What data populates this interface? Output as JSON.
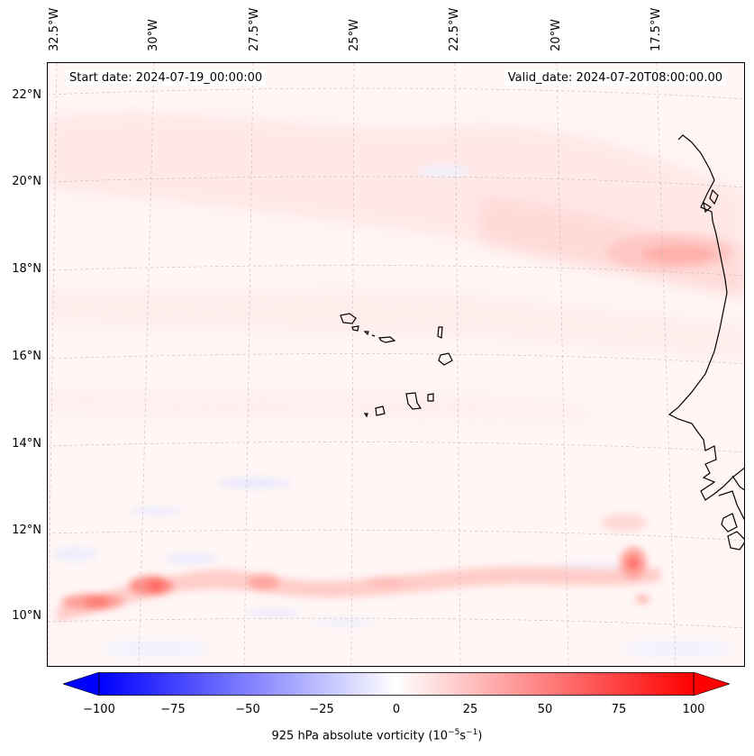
{
  "map": {
    "start_label": "Start date: 2024-07-19_00:00:00",
    "valid_label": "Valid_date: 2024-07-20T08:00:00.00",
    "lon_labels": [
      "32.5°W",
      "30°W",
      "27.5°W",
      "25°W",
      "22.5°W",
      "20°W",
      "17.5°W"
    ],
    "lat_labels": [
      "22°N",
      "20°N",
      "18°N",
      "16°N",
      "14°N",
      "12°N",
      "10°N"
    ],
    "features": [
      "vorticity-band-south",
      "vorticity-maximum-west",
      "cape-verde-islands",
      "west-africa-coast"
    ]
  },
  "colorbar": {
    "ticks": [
      "−100",
      "−75",
      "−50",
      "−25",
      "0",
      "25",
      "50",
      "75",
      "100"
    ],
    "label_main": "925 hPa absolute vorticity (10",
    "label_exp1": "−5",
    "label_mid": "s",
    "label_exp2": "−1",
    "label_end": ")",
    "min": -100,
    "max": 100,
    "colors": {
      "negative": "#0000ff",
      "zero": "#ffffff",
      "positive": "#ff0000"
    }
  }
}
